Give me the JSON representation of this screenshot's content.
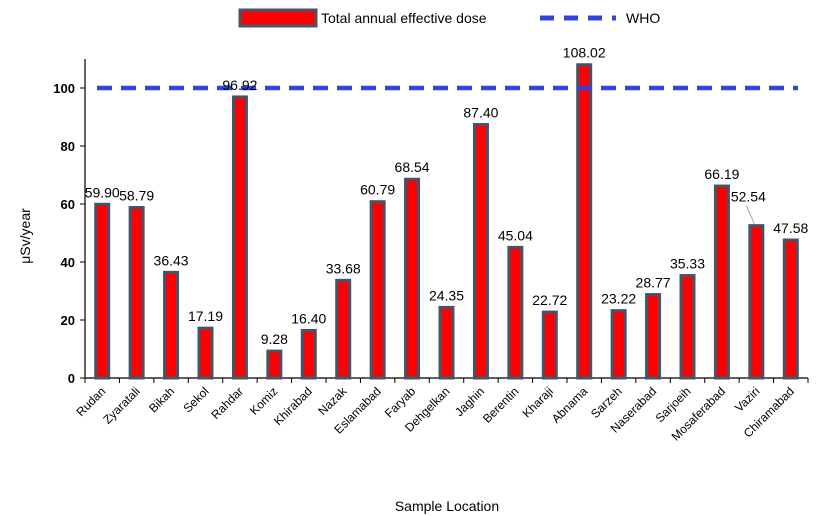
{
  "chart_data": {
    "type": "bar",
    "title": "",
    "xlabel": "Sample Location",
    "ylabel": "μSv/year",
    "ylim": [
      0,
      110
    ],
    "yticks": [
      0,
      20,
      40,
      60,
      80,
      100
    ],
    "grid": false,
    "legend_position": "top",
    "categories": [
      "Rudan",
      "Zyaratali",
      "Bikah",
      "Sekol",
      "Rahdar",
      "Komiz",
      "Khirabad",
      "Nazak",
      "Eslamabad",
      "Faryab",
      "Dehgelkan",
      "Jaghin",
      "Berentin",
      "Kharaji",
      "Abnama",
      "Sarzeh",
      "Naserabad",
      "Sarjoeih",
      "Mosaferabad",
      "Vaziri",
      "Chiramabad"
    ],
    "series": [
      {
        "name": "Total annual effective dose",
        "color": "#ff0000",
        "edge_color": "#44546a",
        "values": [
          59.9,
          58.79,
          36.43,
          17.19,
          96.92,
          9.28,
          16.4,
          33.68,
          60.79,
          68.54,
          24.35,
          87.4,
          45.04,
          22.72,
          108.02,
          23.22,
          28.77,
          35.33,
          66.19,
          52.54,
          47.58
        ],
        "labels": [
          "59.90",
          "58.79",
          "36.43",
          "17.19",
          "96.92",
          "9.28",
          "16.40",
          "33.68",
          "60.79",
          "68.54",
          "24.35",
          "87.40",
          "45.04",
          "22.72",
          "108.02",
          "23.22",
          "28.77",
          "35.33",
          "66.19",
          "52.54",
          "47.58"
        ]
      }
    ],
    "reference_line": {
      "name": "WHO",
      "value": 100,
      "color": "#3344dd",
      "style": "dashed"
    }
  }
}
